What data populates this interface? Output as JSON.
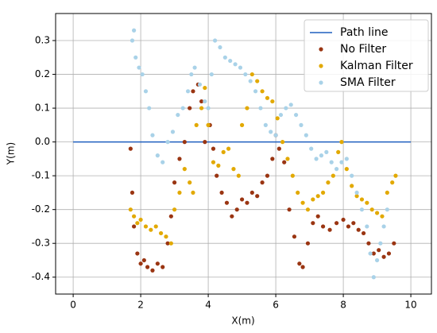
{
  "chart_data": {
    "type": "scatter",
    "x_label": "X(m)",
    "y_label": "Y(m)",
    "xlim": [
      -0.52,
      10.61
    ],
    "ylim": [
      -0.45,
      0.38
    ],
    "xticks": [
      0,
      2,
      4,
      6,
      8,
      10
    ],
    "yticks": [
      -0.4,
      -0.3,
      -0.2,
      -0.1,
      {
        "value": 0,
        "label": "0.0"
      },
      0.1,
      0.2,
      0.3
    ],
    "grid": true,
    "legend": "upper right",
    "series": [
      {
        "name": "Path line",
        "type": "line",
        "color": "#1f5fbf",
        "x": [
          0,
          10
        ],
        "values": [
          0,
          0
        ]
      },
      {
        "name": "No Filter",
        "color": "#9a3512",
        "x": [
          1.7,
          1.75,
          1.8,
          1.9,
          2.0,
          2.1,
          2.2,
          2.35,
          2.5,
          2.65,
          2.8,
          2.9,
          3.0,
          3.15,
          3.3,
          3.45,
          3.55,
          3.7,
          3.8,
          3.9,
          4.05,
          4.15,
          4.25,
          4.4,
          4.55,
          4.7,
          4.85,
          5.0,
          5.15,
          5.3,
          5.45,
          5.6,
          5.75,
          5.9,
          6.0,
          6.1,
          6.25,
          6.4,
          6.55,
          6.7,
          6.8,
          6.95,
          7.1,
          7.25,
          7.4,
          7.6,
          7.8,
          8.0,
          8.15,
          8.3,
          8.45,
          8.6,
          8.75,
          8.9,
          9.05,
          9.2,
          9.35,
          9.5
        ],
        "values": [
          -0.02,
          -0.15,
          -0.25,
          -0.33,
          -0.36,
          -0.35,
          -0.37,
          -0.38,
          -0.36,
          -0.37,
          -0.3,
          -0.22,
          -0.12,
          -0.05,
          0.0,
          0.1,
          0.15,
          0.17,
          0.12,
          0.0,
          0.05,
          -0.02,
          -0.1,
          -0.15,
          -0.18,
          -0.22,
          -0.2,
          -0.17,
          -0.18,
          -0.15,
          -0.16,
          -0.12,
          -0.1,
          -0.05,
          0.02,
          -0.02,
          -0.06,
          -0.2,
          -0.28,
          -0.36,
          -0.37,
          -0.3,
          -0.24,
          -0.22,
          -0.25,
          -0.26,
          -0.24,
          -0.23,
          -0.25,
          -0.24,
          -0.26,
          -0.27,
          -0.3,
          -0.33,
          -0.32,
          -0.34,
          -0.33,
          -0.3
        ]
      },
      {
        "name": "Kalman Filter",
        "color": "#e2a900",
        "x": [
          1.7,
          1.8,
          1.9,
          2.0,
          2.15,
          2.3,
          2.45,
          2.6,
          2.75,
          2.9,
          3.0,
          3.15,
          3.3,
          3.45,
          3.55,
          3.65,
          3.8,
          3.9,
          4.0,
          4.15,
          4.3,
          4.45,
          4.6,
          4.75,
          4.9,
          5.0,
          5.15,
          5.3,
          5.45,
          5.6,
          5.75,
          5.9,
          6.05,
          6.2,
          6.35,
          6.5,
          6.65,
          6.8,
          6.95,
          7.1,
          7.25,
          7.4,
          7.55,
          7.7,
          7.85,
          7.95,
          8.1,
          8.25,
          8.4,
          8.55,
          8.7,
          8.85,
          9.0,
          9.15,
          9.3,
          9.45,
          9.55
        ],
        "values": [
          -0.2,
          -0.22,
          -0.24,
          -0.23,
          -0.25,
          -0.26,
          -0.25,
          -0.27,
          -0.28,
          -0.3,
          -0.2,
          -0.15,
          -0.08,
          -0.12,
          -0.15,
          0.05,
          0.1,
          0.16,
          0.05,
          -0.06,
          -0.07,
          -0.03,
          -0.02,
          -0.08,
          -0.1,
          0.05,
          0.1,
          0.2,
          0.18,
          0.15,
          0.13,
          0.12,
          0.07,
          0.0,
          -0.05,
          -0.1,
          -0.15,
          -0.18,
          -0.2,
          -0.17,
          -0.16,
          -0.15,
          -0.12,
          -0.1,
          -0.03,
          0.0,
          -0.08,
          -0.13,
          -0.16,
          -0.17,
          -0.18,
          -0.2,
          -0.21,
          -0.22,
          -0.15,
          -0.12,
          -0.1
        ]
      },
      {
        "name": "SMA Filter",
        "color": "#a9d2e8",
        "x": [
          1.75,
          1.8,
          1.85,
          1.95,
          2.05,
          2.15,
          2.25,
          2.35,
          2.5,
          2.65,
          2.8,
          2.95,
          3.1,
          3.25,
          3.4,
          3.5,
          3.6,
          3.75,
          3.9,
          4.0,
          4.1,
          4.2,
          4.35,
          4.5,
          4.65,
          4.8,
          4.95,
          5.1,
          5.25,
          5.4,
          5.55,
          5.7,
          5.85,
          6.0,
          6.15,
          6.3,
          6.45,
          6.6,
          6.75,
          6.9,
          7.05,
          7.2,
          7.35,
          7.5,
          7.65,
          7.8,
          7.95,
          8.1,
          8.25,
          8.4,
          8.55,
          8.7,
          8.8,
          8.9,
          9.0,
          9.1,
          9.2,
          9.3
        ],
        "values": [
          0.3,
          0.33,
          0.25,
          0.22,
          0.2,
          0.15,
          0.1,
          0.02,
          -0.04,
          -0.06,
          0.0,
          0.03,
          0.08,
          0.1,
          0.15,
          0.2,
          0.22,
          0.17,
          0.12,
          0.1,
          0.2,
          0.3,
          0.28,
          0.25,
          0.24,
          0.23,
          0.22,
          0.2,
          0.18,
          0.15,
          0.1,
          0.05,
          0.03,
          0.02,
          0.08,
          0.1,
          0.11,
          0.08,
          0.05,
          0.02,
          -0.02,
          -0.05,
          -0.04,
          -0.03,
          -0.06,
          -0.08,
          -0.06,
          -0.05,
          -0.1,
          -0.15,
          -0.2,
          -0.25,
          -0.33,
          -0.4,
          -0.35,
          -0.3,
          -0.25,
          -0.2
        ]
      }
    ]
  }
}
